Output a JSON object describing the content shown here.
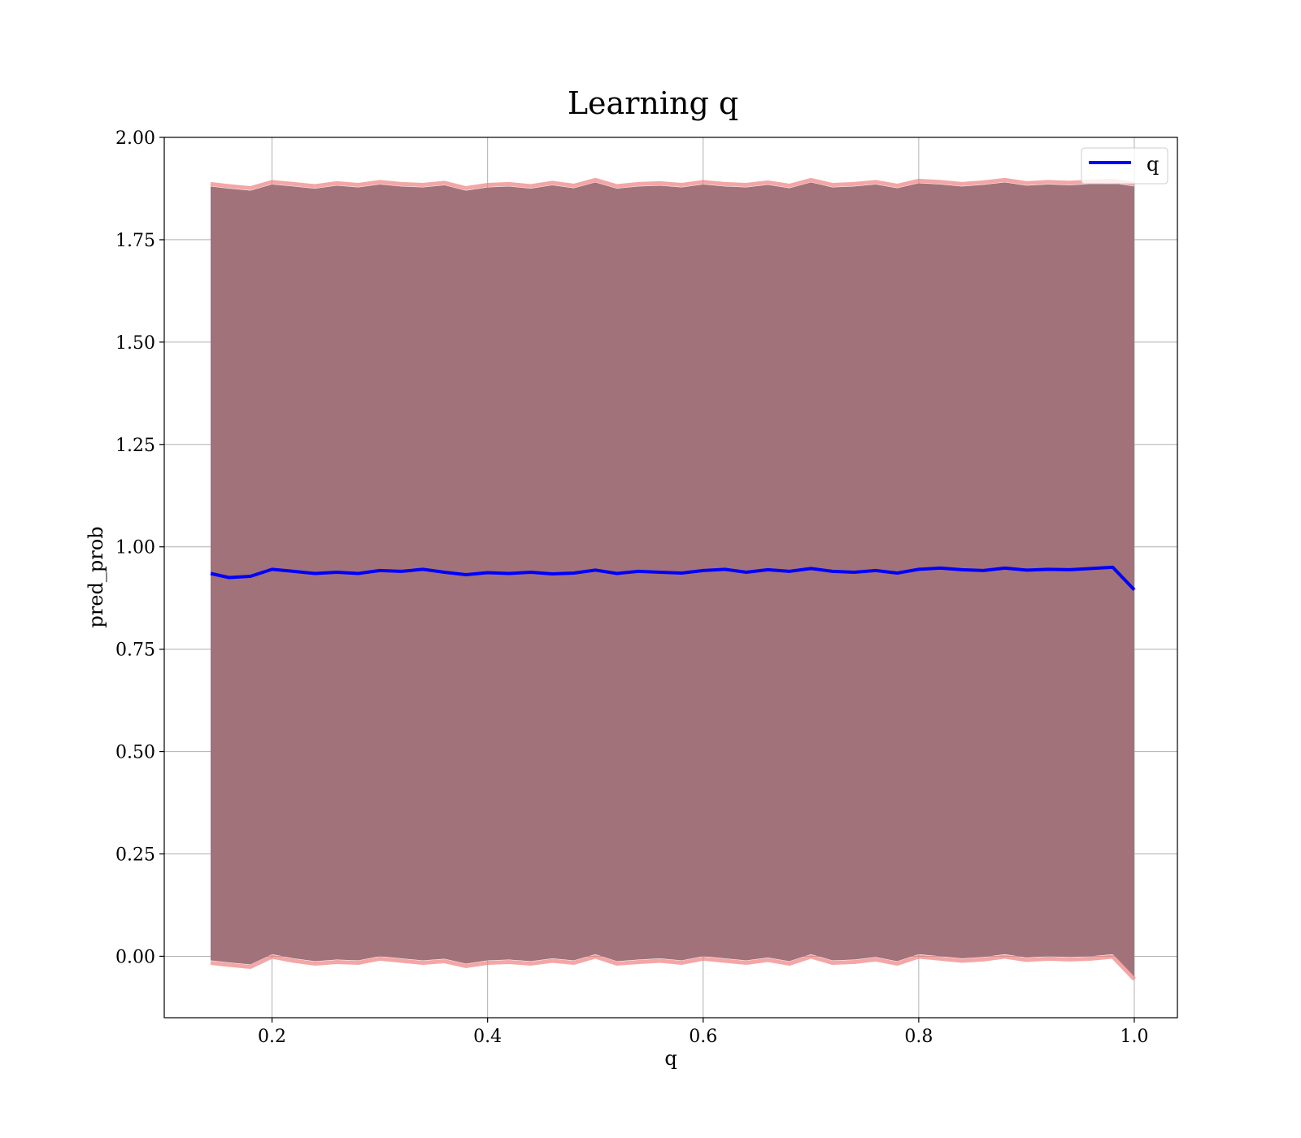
{
  "chart_data": {
    "type": "line",
    "title": "Learning q",
    "xlabel": "q",
    "ylabel": "pred_prob",
    "xlim": [
      0.1,
      1.04
    ],
    "ylim": [
      -0.15,
      2.0
    ],
    "xticks": [
      0.2,
      0.4,
      0.6,
      0.8,
      1.0
    ],
    "xtick_labels": [
      "0.2",
      "0.4",
      "0.6",
      "0.8",
      "1.0"
    ],
    "yticks": [
      0.0,
      0.25,
      0.5,
      0.75,
      1.0,
      1.25,
      1.5,
      1.75,
      2.0
    ],
    "ytick_labels": [
      "0.00",
      "0.25",
      "0.50",
      "0.75",
      "1.00",
      "1.25",
      "1.50",
      "1.75",
      "2.00"
    ],
    "grid": true,
    "legend_position": "top-right",
    "colors": {
      "line": "#0000ff",
      "band_fill": "#a1727a",
      "band_edge": "#f08080"
    },
    "series": [
      {
        "name": "q",
        "x": [
          0.143,
          0.16,
          0.18,
          0.2,
          0.22,
          0.24,
          0.26,
          0.28,
          0.3,
          0.32,
          0.34,
          0.36,
          0.38,
          0.4,
          0.42,
          0.44,
          0.46,
          0.48,
          0.5,
          0.52,
          0.54,
          0.56,
          0.58,
          0.6,
          0.62,
          0.64,
          0.66,
          0.68,
          0.7,
          0.72,
          0.74,
          0.76,
          0.78,
          0.8,
          0.82,
          0.84,
          0.86,
          0.88,
          0.9,
          0.92,
          0.94,
          0.96,
          0.98,
          1.0
        ],
        "y": [
          0.935,
          0.925,
          0.928,
          0.945,
          0.94,
          0.935,
          0.938,
          0.935,
          0.942,
          0.94,
          0.945,
          0.938,
          0.932,
          0.937,
          0.935,
          0.938,
          0.934,
          0.936,
          0.943,
          0.935,
          0.94,
          0.938,
          0.936,
          0.942,
          0.945,
          0.938,
          0.944,
          0.94,
          0.947,
          0.94,
          0.938,
          0.942,
          0.936,
          0.945,
          0.948,
          0.944,
          0.942,
          0.948,
          0.943,
          0.945,
          0.944,
          0.947,
          0.95,
          0.895
        ]
      }
    ],
    "band": {
      "x": [
        0.143,
        0.16,
        0.18,
        0.2,
        0.22,
        0.24,
        0.26,
        0.28,
        0.3,
        0.32,
        0.34,
        0.36,
        0.38,
        0.4,
        0.42,
        0.44,
        0.46,
        0.48,
        0.5,
        0.52,
        0.54,
        0.56,
        0.58,
        0.6,
        0.62,
        0.64,
        0.66,
        0.68,
        0.7,
        0.72,
        0.74,
        0.76,
        0.78,
        0.8,
        0.82,
        0.84,
        0.86,
        0.88,
        0.9,
        0.92,
        0.94,
        0.96,
        0.98,
        1.0
      ],
      "upper": [
        1.88,
        1.875,
        1.87,
        1.885,
        1.88,
        1.875,
        1.882,
        1.878,
        1.885,
        1.88,
        1.878,
        1.883,
        1.87,
        1.878,
        1.88,
        1.875,
        1.883,
        1.876,
        1.89,
        1.875,
        1.88,
        1.882,
        1.878,
        1.885,
        1.88,
        1.878,
        1.884,
        1.876,
        1.89,
        1.878,
        1.88,
        1.885,
        1.876,
        1.888,
        1.885,
        1.88,
        1.884,
        1.89,
        1.882,
        1.885,
        1.883,
        1.886,
        1.888,
        1.88
      ],
      "lower": [
        -0.01,
        -0.015,
        -0.02,
        0.005,
        -0.005,
        -0.012,
        -0.008,
        -0.01,
        0.0,
        -0.005,
        -0.01,
        -0.006,
        -0.018,
        -0.01,
        -0.008,
        -0.012,
        -0.005,
        -0.01,
        0.005,
        -0.012,
        -0.008,
        -0.005,
        -0.01,
        0.0,
        -0.005,
        -0.01,
        -0.003,
        -0.012,
        0.005,
        -0.01,
        -0.008,
        -0.002,
        -0.012,
        0.005,
        0.0,
        -0.005,
        -0.002,
        0.005,
        -0.003,
        0.0,
        -0.002,
        0.0,
        0.005,
        -0.05
      ]
    }
  }
}
